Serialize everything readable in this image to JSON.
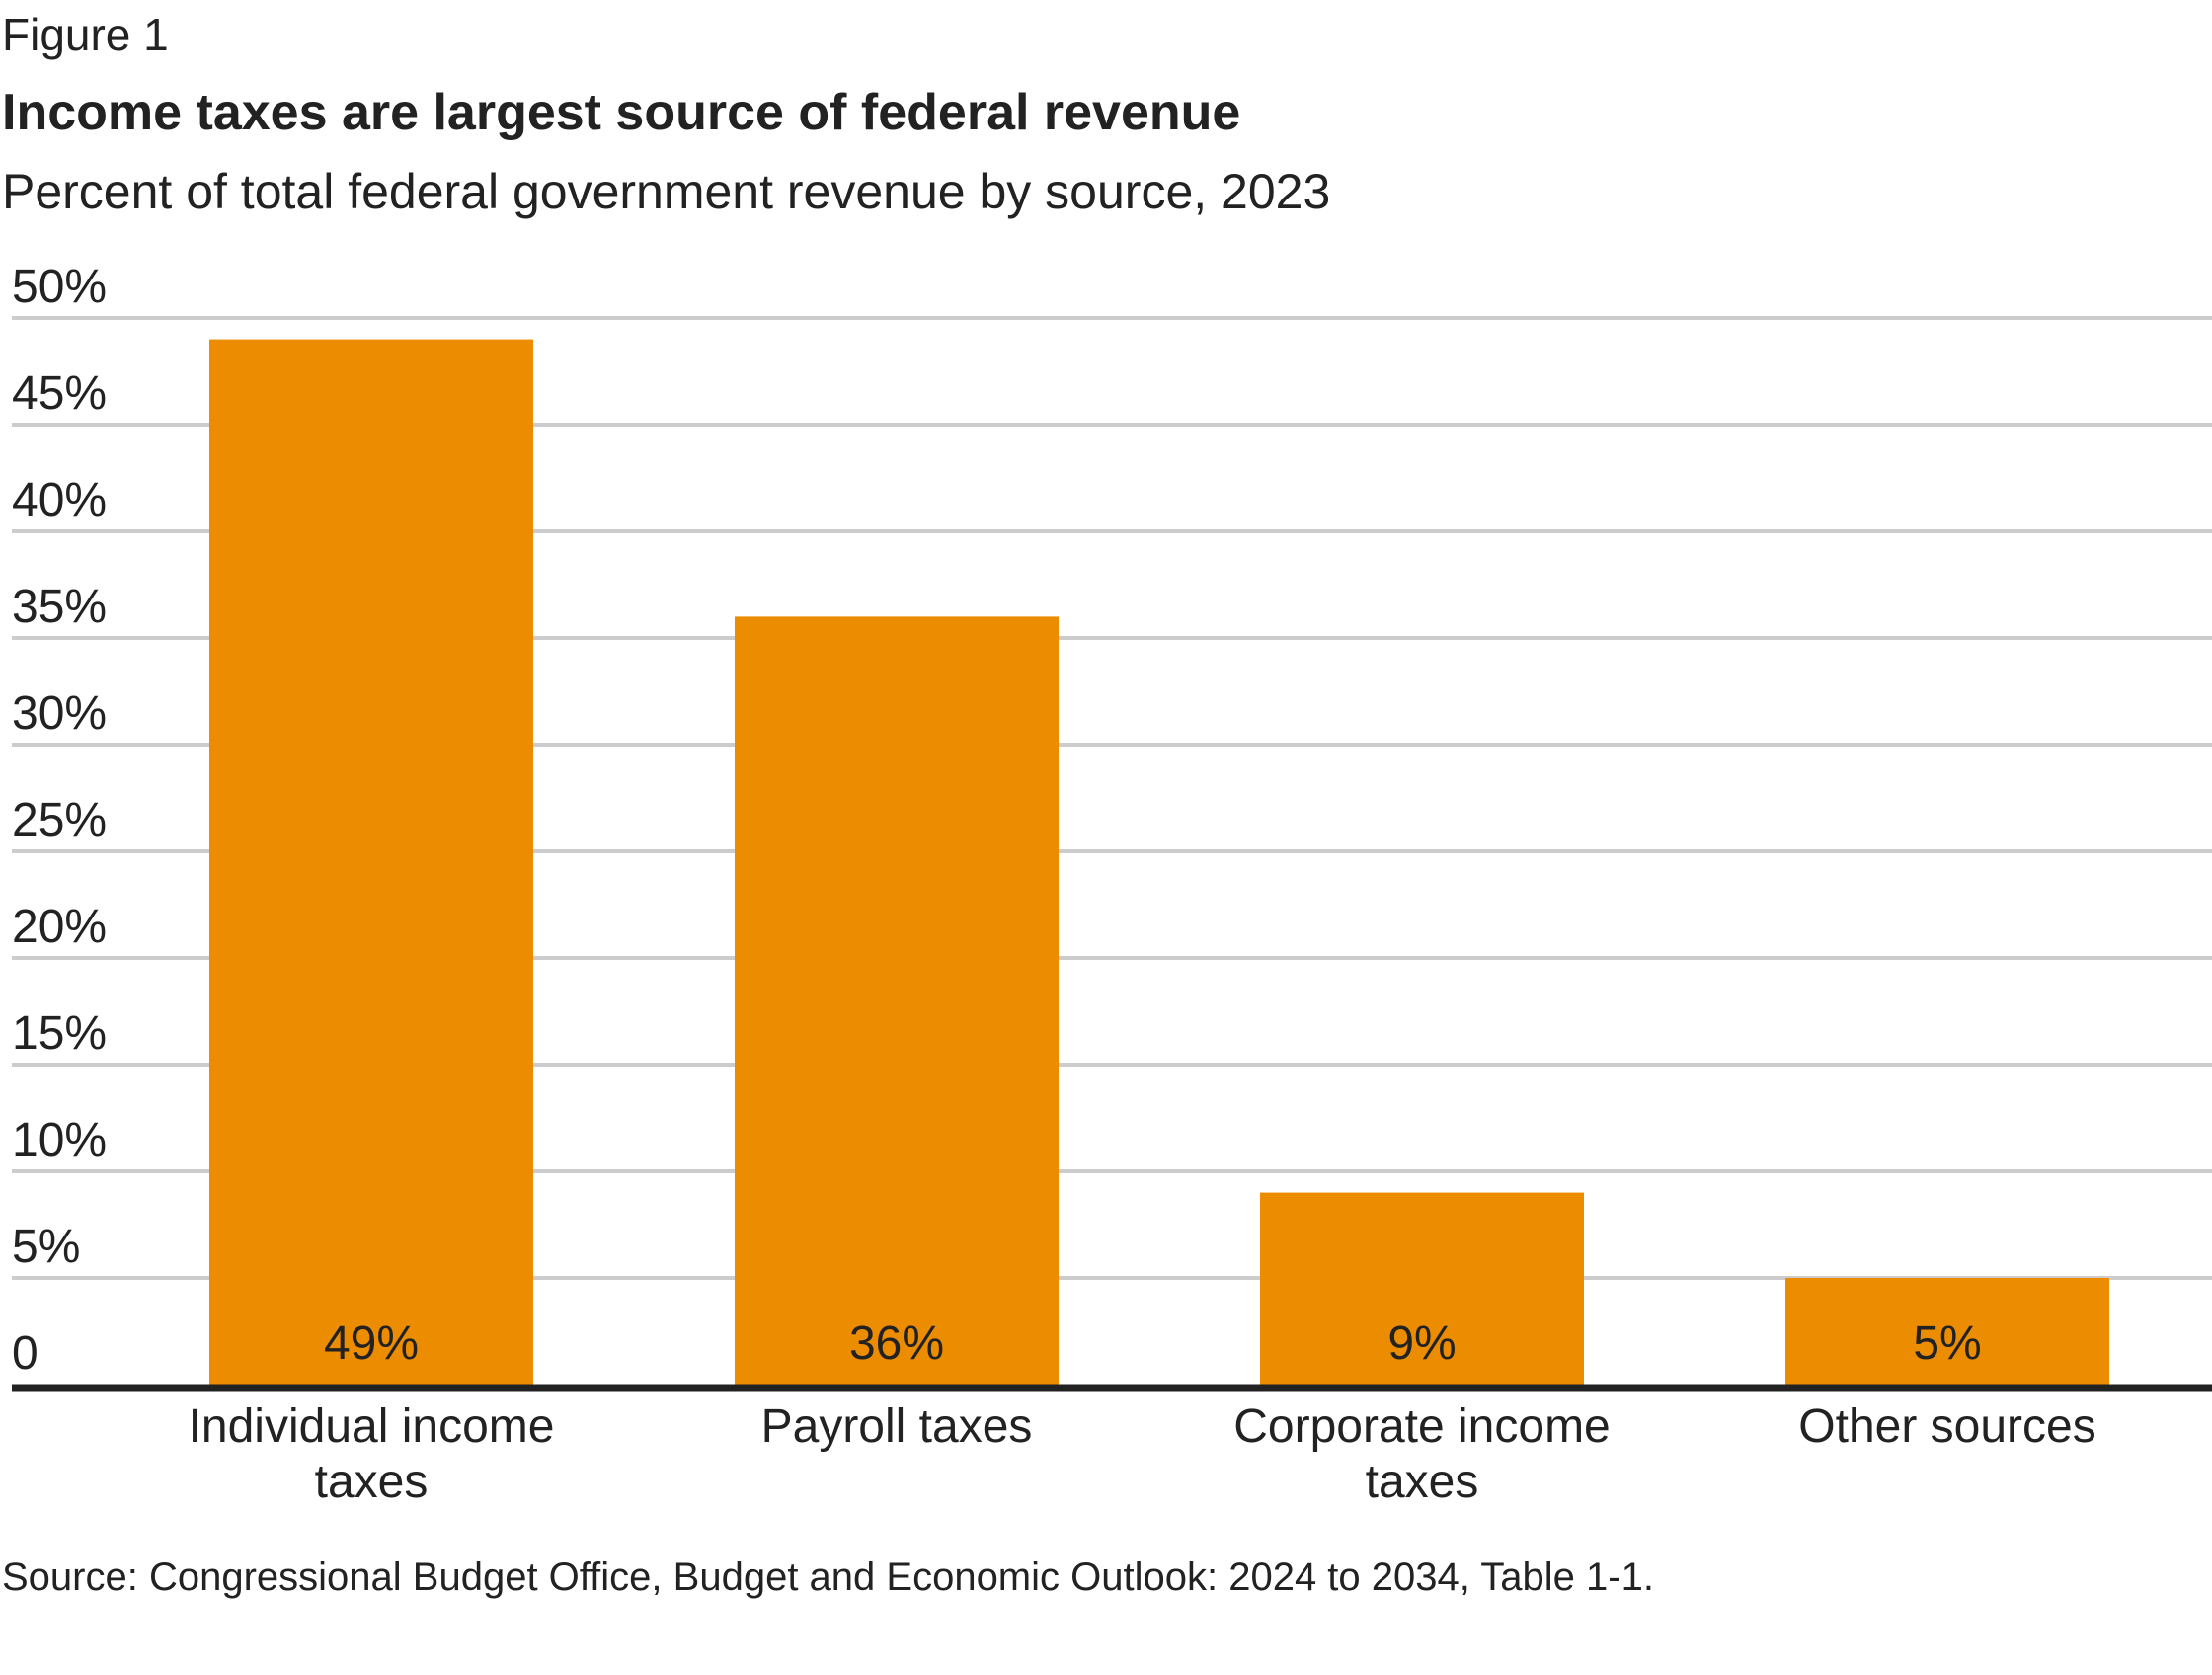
{
  "figure_label": "Figure 1",
  "source_note": "Source: Congressional Budget Office, Budget and Economic Outlook: 2024 to 2034, Table 1-1.",
  "colors": {
    "bar": "#ec8c00",
    "grid": "#cccccc",
    "axis": "#222222"
  },
  "chart_data": {
    "type": "bar",
    "title": "Income taxes are largest source of federal revenue",
    "subtitle": "Percent of total federal government revenue by source, 2023",
    "categories": [
      [
        "Individual income",
        "taxes"
      ],
      [
        "Payroll taxes"
      ],
      [
        "Corporate income",
        "taxes"
      ],
      [
        "Other sources"
      ]
    ],
    "values": [
      49,
      36,
      9,
      5
    ],
    "value_labels": [
      "49%",
      "36%",
      "9%",
      "5%"
    ],
    "ylim": [
      0,
      50
    ],
    "yticks": [
      0,
      5,
      10,
      15,
      20,
      25,
      30,
      35,
      40,
      45,
      50
    ],
    "ytick_labels": [
      "0",
      "5%",
      "10%",
      "15%",
      "20%",
      "25%",
      "30%",
      "35%",
      "40%",
      "45%",
      "50%"
    ],
    "grid": true,
    "legend": "none"
  }
}
